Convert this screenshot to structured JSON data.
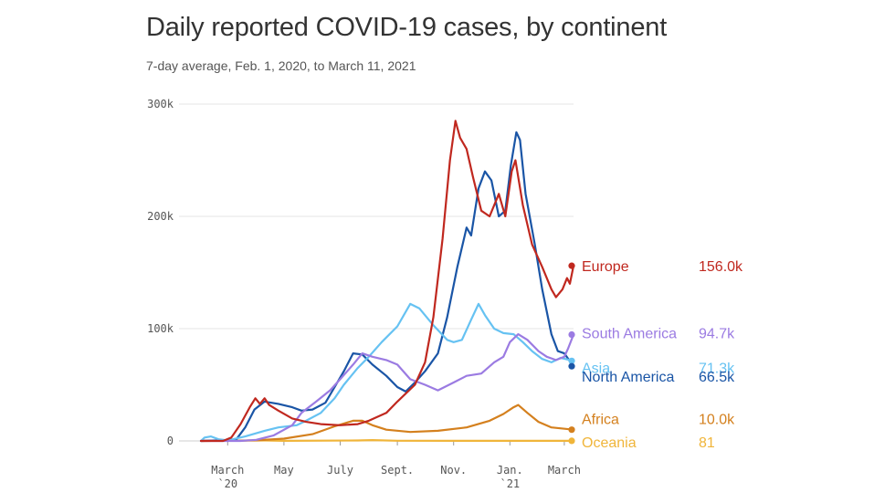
{
  "header": {
    "title": "Daily reported COVID-19 cases, by continent",
    "subtitle": "7-day average, Feb. 1, 2020, to March 11, 2021"
  },
  "chart_data": {
    "type": "line",
    "title": "Daily reported COVID-19 cases, by continent",
    "subtitle": "7-day average, Feb. 1, 2020, to March 11, 2021",
    "x_range": [
      "2020-02-01",
      "2021-03-11"
    ],
    "ylim": [
      0,
      300000
    ],
    "y_ticks": [
      {
        "value": 0,
        "label": "0"
      },
      {
        "value": 100000,
        "label": "100k"
      },
      {
        "value": 200000,
        "label": "200k"
      },
      {
        "value": 300000,
        "label": "300k"
      }
    ],
    "x_ticks": [
      {
        "date": "2020-03-01",
        "label": "March",
        "sublabel": "`20"
      },
      {
        "date": "2020-05-01",
        "label": "May",
        "sublabel": ""
      },
      {
        "date": "2020-07-01",
        "label": "July",
        "sublabel": ""
      },
      {
        "date": "2020-09-01",
        "label": "Sept.",
        "sublabel": ""
      },
      {
        "date": "2020-11-01",
        "label": "Nov.",
        "sublabel": ""
      },
      {
        "date": "2021-01-01",
        "label": "Jan.",
        "sublabel": "`21"
      },
      {
        "date": "2021-03-01",
        "label": "March",
        "sublabel": ""
      }
    ],
    "grid": true,
    "legend": "direct labels at right end of lines",
    "series": [
      {
        "name": "Europe",
        "color": "#c0281f",
        "end_label": "156.0k",
        "label_value": 156000,
        "points": [
          [
            "2020-02-01",
            0
          ],
          [
            "2020-02-25",
            0
          ],
          [
            "2020-03-05",
            3000
          ],
          [
            "2020-03-15",
            15000
          ],
          [
            "2020-03-25",
            30000
          ],
          [
            "2020-03-31",
            38000
          ],
          [
            "2020-04-05",
            33000
          ],
          [
            "2020-04-10",
            38000
          ],
          [
            "2020-04-15",
            32000
          ],
          [
            "2020-04-25",
            27000
          ],
          [
            "2020-05-10",
            20000
          ],
          [
            "2020-05-25",
            17000
          ],
          [
            "2020-06-10",
            15000
          ],
          [
            "2020-07-01",
            14000
          ],
          [
            "2020-07-20",
            15000
          ],
          [
            "2020-08-01",
            18000
          ],
          [
            "2020-08-20",
            25000
          ],
          [
            "2020-09-01",
            35000
          ],
          [
            "2020-09-20",
            50000
          ],
          [
            "2020-10-01",
            70000
          ],
          [
            "2020-10-10",
            110000
          ],
          [
            "2020-10-20",
            180000
          ],
          [
            "2020-10-28",
            250000
          ],
          [
            "2020-11-03",
            285000
          ],
          [
            "2020-11-08",
            270000
          ],
          [
            "2020-11-15",
            260000
          ],
          [
            "2020-11-22",
            235000
          ],
          [
            "2020-12-01",
            205000
          ],
          [
            "2020-12-10",
            200000
          ],
          [
            "2020-12-20",
            220000
          ],
          [
            "2020-12-27",
            200000
          ],
          [
            "2021-01-03",
            240000
          ],
          [
            "2021-01-07",
            250000
          ],
          [
            "2021-01-15",
            210000
          ],
          [
            "2021-01-25",
            175000
          ],
          [
            "2021-02-05",
            155000
          ],
          [
            "2021-02-15",
            135000
          ],
          [
            "2021-02-20",
            128000
          ],
          [
            "2021-02-27",
            135000
          ],
          [
            "2021-03-04",
            145000
          ],
          [
            "2021-03-07",
            140000
          ],
          [
            "2021-03-11",
            156000
          ]
        ]
      },
      {
        "name": "South America",
        "color": "#9b7be2",
        "end_label": "94.7k",
        "label_value": 94700,
        "points": [
          [
            "2020-02-01",
            0
          ],
          [
            "2020-03-15",
            0
          ],
          [
            "2020-04-01",
            1000
          ],
          [
            "2020-04-20",
            5000
          ],
          [
            "2020-05-10",
            14000
          ],
          [
            "2020-05-20",
            25000
          ],
          [
            "2020-06-05",
            35000
          ],
          [
            "2020-06-20",
            45000
          ],
          [
            "2020-07-01",
            55000
          ],
          [
            "2020-07-15",
            68000
          ],
          [
            "2020-07-25",
            78000
          ],
          [
            "2020-08-05",
            75000
          ],
          [
            "2020-08-20",
            72000
          ],
          [
            "2020-09-01",
            68000
          ],
          [
            "2020-09-15",
            55000
          ],
          [
            "2020-10-01",
            50000
          ],
          [
            "2020-10-15",
            45000
          ],
          [
            "2020-11-01",
            52000
          ],
          [
            "2020-11-15",
            58000
          ],
          [
            "2020-12-01",
            60000
          ],
          [
            "2020-12-15",
            70000
          ],
          [
            "2020-12-25",
            75000
          ],
          [
            "2021-01-01",
            88000
          ],
          [
            "2021-01-10",
            95000
          ],
          [
            "2021-01-20",
            90000
          ],
          [
            "2021-02-01",
            80000
          ],
          [
            "2021-02-10",
            75000
          ],
          [
            "2021-02-20",
            72000
          ],
          [
            "2021-03-01",
            75000
          ],
          [
            "2021-03-05",
            82000
          ],
          [
            "2021-03-11",
            94700
          ]
        ]
      },
      {
        "name": "Asia",
        "color": "#66c2f2",
        "end_label": "71.3k",
        "label_value": 71300,
        "points": [
          [
            "2020-02-01",
            0
          ],
          [
            "2020-02-05",
            3000
          ],
          [
            "2020-02-12",
            4000
          ],
          [
            "2020-02-20",
            1500
          ],
          [
            "2020-03-01",
            500
          ],
          [
            "2020-03-20",
            4000
          ],
          [
            "2020-04-10",
            9000
          ],
          [
            "2020-04-25",
            12000
          ],
          [
            "2020-05-15",
            14000
          ],
          [
            "2020-05-25",
            18000
          ],
          [
            "2020-06-10",
            25000
          ],
          [
            "2020-06-25",
            38000
          ],
          [
            "2020-07-05",
            50000
          ],
          [
            "2020-07-20",
            65000
          ],
          [
            "2020-08-01",
            75000
          ],
          [
            "2020-08-15",
            88000
          ],
          [
            "2020-09-01",
            102000
          ],
          [
            "2020-09-15",
            122000
          ],
          [
            "2020-09-25",
            118000
          ],
          [
            "2020-10-10",
            103000
          ],
          [
            "2020-10-25",
            90000
          ],
          [
            "2020-11-01",
            88000
          ],
          [
            "2020-11-10",
            90000
          ],
          [
            "2020-11-20",
            108000
          ],
          [
            "2020-11-28",
            122000
          ],
          [
            "2020-12-05",
            112000
          ],
          [
            "2020-12-15",
            100000
          ],
          [
            "2020-12-25",
            96000
          ],
          [
            "2021-01-05",
            95000
          ],
          [
            "2021-01-15",
            88000
          ],
          [
            "2021-01-25",
            80000
          ],
          [
            "2021-02-05",
            73000
          ],
          [
            "2021-02-15",
            70000
          ],
          [
            "2021-02-25",
            74000
          ],
          [
            "2021-03-11",
            71300
          ]
        ]
      },
      {
        "name": "North America",
        "color": "#1a55a6",
        "end_label": "66.5k",
        "label_value": 66500,
        "points": [
          [
            "2020-02-01",
            0
          ],
          [
            "2020-03-10",
            1000
          ],
          [
            "2020-03-20",
            12000
          ],
          [
            "2020-03-30",
            28000
          ],
          [
            "2020-04-10",
            35000
          ],
          [
            "2020-04-25",
            33000
          ],
          [
            "2020-05-10",
            30000
          ],
          [
            "2020-05-20",
            27000
          ],
          [
            "2020-06-01",
            28000
          ],
          [
            "2020-06-15",
            34000
          ],
          [
            "2020-06-25",
            48000
          ],
          [
            "2020-07-05",
            62000
          ],
          [
            "2020-07-15",
            78000
          ],
          [
            "2020-07-25",
            77000
          ],
          [
            "2020-08-05",
            68000
          ],
          [
            "2020-08-20",
            58000
          ],
          [
            "2020-09-01",
            48000
          ],
          [
            "2020-09-10",
            44000
          ],
          [
            "2020-09-20",
            52000
          ],
          [
            "2020-10-01",
            62000
          ],
          [
            "2020-10-15",
            78000
          ],
          [
            "2020-10-25",
            110000
          ],
          [
            "2020-11-05",
            155000
          ],
          [
            "2020-11-15",
            190000
          ],
          [
            "2020-11-20",
            183000
          ],
          [
            "2020-11-28",
            225000
          ],
          [
            "2020-12-05",
            240000
          ],
          [
            "2020-12-12",
            232000
          ],
          [
            "2020-12-20",
            200000
          ],
          [
            "2020-12-27",
            205000
          ],
          [
            "2021-01-02",
            245000
          ],
          [
            "2021-01-08",
            275000
          ],
          [
            "2021-01-12",
            268000
          ],
          [
            "2021-01-18",
            220000
          ],
          [
            "2021-01-28",
            175000
          ],
          [
            "2021-02-05",
            135000
          ],
          [
            "2021-02-15",
            95000
          ],
          [
            "2021-02-22",
            80000
          ],
          [
            "2021-03-01",
            78000
          ],
          [
            "2021-03-11",
            66500
          ]
        ]
      },
      {
        "name": "Africa",
        "color": "#d4801e",
        "end_label": "10.0k",
        "label_value": 10000,
        "points": [
          [
            "2020-02-01",
            0
          ],
          [
            "2020-04-01",
            500
          ],
          [
            "2020-05-01",
            2000
          ],
          [
            "2020-06-01",
            6000
          ],
          [
            "2020-06-25",
            13000
          ],
          [
            "2020-07-15",
            18000
          ],
          [
            "2020-07-25",
            18000
          ],
          [
            "2020-08-05",
            14000
          ],
          [
            "2020-08-20",
            10000
          ],
          [
            "2020-09-15",
            8000
          ],
          [
            "2020-10-15",
            9000
          ],
          [
            "2020-11-15",
            12000
          ],
          [
            "2020-12-10",
            18000
          ],
          [
            "2020-12-25",
            24000
          ],
          [
            "2021-01-05",
            30000
          ],
          [
            "2021-01-10",
            32000
          ],
          [
            "2021-01-20",
            25000
          ],
          [
            "2021-02-01",
            17000
          ],
          [
            "2021-02-15",
            12000
          ],
          [
            "2021-03-11",
            10000
          ]
        ]
      },
      {
        "name": "Oceania",
        "color": "#f0b53a",
        "end_label": "81",
        "label_value": 81,
        "points": [
          [
            "2020-02-01",
            0
          ],
          [
            "2020-03-20",
            300
          ],
          [
            "2020-04-05",
            500
          ],
          [
            "2020-05-01",
            100
          ],
          [
            "2020-07-20",
            400
          ],
          [
            "2020-08-05",
            700
          ],
          [
            "2020-09-01",
            200
          ],
          [
            "2020-12-01",
            50
          ],
          [
            "2021-03-11",
            81
          ]
        ]
      }
    ]
  }
}
